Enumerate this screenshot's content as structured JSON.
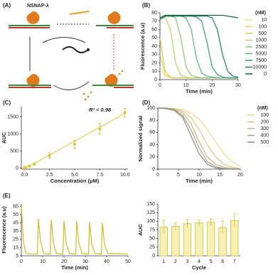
{
  "diagram": {
    "label": "(A)",
    "title": "NSNAP-λ"
  },
  "chart_data": [
    {
      "type": "line",
      "label": "(B)",
      "xlabel": "Time (min)",
      "ylabel": "Fluorescence (a.u)",
      "xlim": [
        0,
        30
      ],
      "xticks": [
        0,
        10,
        20,
        30
      ],
      "ylim": [
        0,
        80
      ],
      "yticks": [
        0,
        10,
        20,
        30,
        40,
        50,
        60,
        70,
        80
      ],
      "legend_title": "(nM)",
      "x": [
        0,
        2,
        4,
        6,
        8,
        10,
        12,
        14,
        16,
        18,
        20,
        22,
        24,
        26,
        28,
        30
      ],
      "series": [
        {
          "name": "10",
          "color": "#f3e08c",
          "values": [
            15,
            4,
            2,
            2,
            2,
            2,
            2,
            2,
            2,
            2,
            2,
            2,
            2,
            2,
            2,
            2
          ]
        },
        {
          "name": "100",
          "color": "#e8d46a",
          "values": [
            30,
            6,
            3,
            2,
            2,
            2,
            2,
            2,
            2,
            2,
            2,
            2,
            2,
            2,
            2,
            2
          ]
        },
        {
          "name": "500",
          "color": "#d4cc55",
          "values": [
            50,
            10,
            3,
            2,
            2,
            2,
            2,
            2,
            2,
            2,
            2,
            2,
            2,
            2,
            2,
            2
          ]
        },
        {
          "name": "1000",
          "color": "#b6cf66",
          "values": [
            72,
            75,
            60,
            20,
            5,
            3,
            2,
            2,
            2,
            2,
            2,
            2,
            2,
            2,
            2,
            2
          ]
        },
        {
          "name": "2500",
          "color": "#8ec67a",
          "values": [
            72,
            76,
            76,
            74,
            50,
            15,
            5,
            3,
            2,
            2,
            2,
            2,
            2,
            2,
            2,
            2
          ]
        },
        {
          "name": "5000",
          "color": "#5fb47d",
          "values": [
            72,
            76,
            76,
            76,
            76,
            74,
            60,
            25,
            8,
            4,
            3,
            2,
            2,
            2,
            2,
            2
          ]
        },
        {
          "name": "7500",
          "color": "#3a9a6e",
          "values": [
            72,
            76,
            76,
            76,
            76,
            76,
            76,
            75,
            70,
            45,
            15,
            6,
            3,
            2,
            2,
            2
          ]
        },
        {
          "name": "10000",
          "color": "#1f7a5a",
          "values": [
            72,
            76,
            76,
            76,
            76,
            76,
            76,
            76,
            76,
            76,
            74,
            60,
            30,
            10,
            4,
            3
          ]
        },
        {
          "name": "0",
          "color": "#0c5a42",
          "values": [
            74,
            77,
            77,
            77,
            77,
            77,
            77,
            77,
            77,
            77,
            77,
            77,
            77,
            76,
            75,
            74
          ]
        }
      ]
    },
    {
      "type": "scatter",
      "label": "(C)",
      "xlabel": "Concentration (µM)",
      "ylabel": "AUC",
      "xlim": [
        -0.3,
        10.3
      ],
      "xticks": [
        {
          "value": 0,
          "label": "0.0"
        },
        2.5,
        {
          "value": 5,
          "label": "5.0"
        },
        7.5,
        {
          "value": 10,
          "label": "10.0"
        }
      ],
      "ylim": [
        -30,
        1800
      ],
      "yticks": [
        0,
        500,
        1000,
        1500
      ],
      "annotation": "R² = 0.98",
      "color": "#d9c845",
      "x": [
        0,
        0.1,
        0.5,
        1,
        2.5,
        5,
        7.5,
        10
      ],
      "values": [
        0,
        20,
        60,
        120,
        370,
        700,
        1150,
        1620
      ],
      "errors": [
        10,
        10,
        20,
        30,
        80,
        120,
        150,
        130
      ],
      "trend": {
        "x": [
          0,
          10
        ],
        "values": [
          -20,
          1600
        ]
      }
    },
    {
      "type": "line",
      "label": "(D)",
      "xlabel": "Time (min)",
      "ylabel": "Normalized signal",
      "xlim": [
        0,
        20
      ],
      "xticks": [
        0,
        5,
        10,
        15,
        20
      ],
      "ylim": [
        0,
        100
      ],
      "yticks": [
        0,
        20,
        40,
        60,
        80,
        100
      ],
      "legend_title": "(nM)",
      "x": [
        0,
        2,
        4,
        6,
        8,
        10,
        12,
        14,
        16,
        18,
        20
      ],
      "series": [
        {
          "name": "100",
          "color": "#f0d98f",
          "values": [
            100,
            100,
            99,
            97,
            92,
            82,
            65,
            45,
            25,
            12,
            5
          ]
        },
        {
          "name": "200",
          "color": "#e0c682",
          "values": [
            100,
            100,
            99,
            95,
            85,
            65,
            40,
            20,
            8,
            3,
            1
          ]
        },
        {
          "name": "300",
          "color": "#c6b387",
          "values": [
            100,
            100,
            98,
            92,
            75,
            45,
            20,
            8,
            3,
            1,
            0
          ]
        },
        {
          "name": "400",
          "color": "#a89c86",
          "values": [
            100,
            100,
            97,
            88,
            65,
            35,
            12,
            4,
            1,
            0,
            0
          ]
        },
        {
          "name": "500",
          "color": "#8a8a80",
          "values": [
            100,
            99,
            96,
            85,
            55,
            25,
            8,
            2,
            1,
            0,
            0
          ]
        }
      ]
    },
    {
      "type": "line",
      "label": "(E)",
      "xlabel": "Time (min)",
      "ylabel": "Fluorescence (a.u)",
      "xlim": [
        0,
        50
      ],
      "xticks": [
        0,
        10,
        20,
        30,
        40,
        50
      ],
      "ylim": [
        5,
        68
      ],
      "yticks": [
        5,
        15,
        25,
        35,
        45,
        55,
        65
      ],
      "x": [
        0,
        1,
        2,
        4,
        7.5,
        8,
        9,
        10.5,
        13.5,
        14,
        15,
        16.5,
        19.5,
        20,
        21,
        22.5,
        25.5,
        26,
        27,
        28.5,
        31.5,
        32,
        33,
        34.5,
        37.5,
        38,
        39,
        40.5,
        50
      ],
      "series": [
        {
          "color": "#c8bd2a",
          "values": [
            65,
            22,
            9,
            7,
            7,
            50,
            22,
            8,
            7,
            49,
            21,
            8,
            7,
            48,
            20,
            8,
            7,
            47,
            20,
            8,
            7,
            46,
            19,
            8,
            7,
            45,
            19,
            8,
            7
          ]
        }
      ]
    },
    {
      "type": "bar",
      "xlabel": "Cycle",
      "ylabel": "AUC",
      "ylim": [
        0,
        150
      ],
      "yticks": [
        0,
        25,
        50,
        75,
        100,
        125,
        150
      ],
      "color": "#f6f0b4",
      "edge_color": "#cdbf3a",
      "categories": [
        "1",
        "2",
        "3",
        "4",
        "5",
        "6",
        "7"
      ],
      "values": [
        83,
        85,
        93,
        95,
        97,
        82,
        102
      ],
      "errors": [
        20,
        10,
        12,
        8,
        10,
        18,
        20
      ]
    }
  ]
}
